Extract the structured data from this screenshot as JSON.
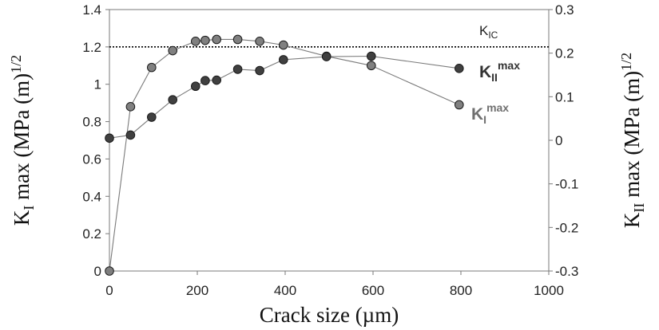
{
  "chart_data": {
    "type": "line",
    "x": [
      0,
      48,
      96,
      144,
      196,
      218,
      244,
      292,
      342,
      396,
      494,
      596,
      796
    ],
    "series": [
      {
        "name": "KImax",
        "axis": "left",
        "color": "#808080",
        "y": [
          0,
          0.88,
          1.09,
          1.18,
          1.23,
          1.235,
          1.24,
          1.24,
          1.23,
          1.21,
          1.15,
          1.1,
          0.89
        ]
      },
      {
        "name": "KIImax",
        "axis": "right",
        "color": "#404040",
        "y": [
          0.005,
          0.012,
          0.053,
          0.093,
          0.124,
          0.137,
          0.138,
          0.163,
          0.16,
          0.185,
          0.192,
          0.193,
          0.165
        ]
      }
    ],
    "xlim": [
      0,
      1000
    ],
    "ylim_left": [
      0,
      1.4
    ],
    "ylim_right": [
      -0.3,
      0.3
    ],
    "x_ticks": [
      "0",
      "200",
      "400",
      "600",
      "800",
      "1000"
    ],
    "y_ticks_left": [
      "0",
      "0.2",
      "0.4",
      "0.6",
      "0.8",
      "1",
      "1.2",
      "1.4"
    ],
    "y_ticks_right": [
      "-0.3",
      "-0.2",
      "-0.1",
      "0",
      "0.1",
      "0.2",
      "0.3"
    ],
    "xlabel": "Crack size (µm)",
    "ylabel_left": {
      "main": "K",
      "sub": "I",
      "rest": " max (MPa (m)",
      "sup": "1/2"
    },
    "ylabel_right": {
      "main": "K",
      "sub": "II",
      "rest": " max (MPa (m)",
      "sup": "1/2"
    },
    "reference_line": {
      "value": 1.2,
      "axis": "left",
      "label_main": "K",
      "label_sub": "IC"
    },
    "labels": {
      "kii": {
        "main": "K",
        "sub": "II",
        "sup": "max"
      },
      "ki": {
        "main": "K",
        "sub": "I",
        "sup": "max"
      }
    }
  }
}
